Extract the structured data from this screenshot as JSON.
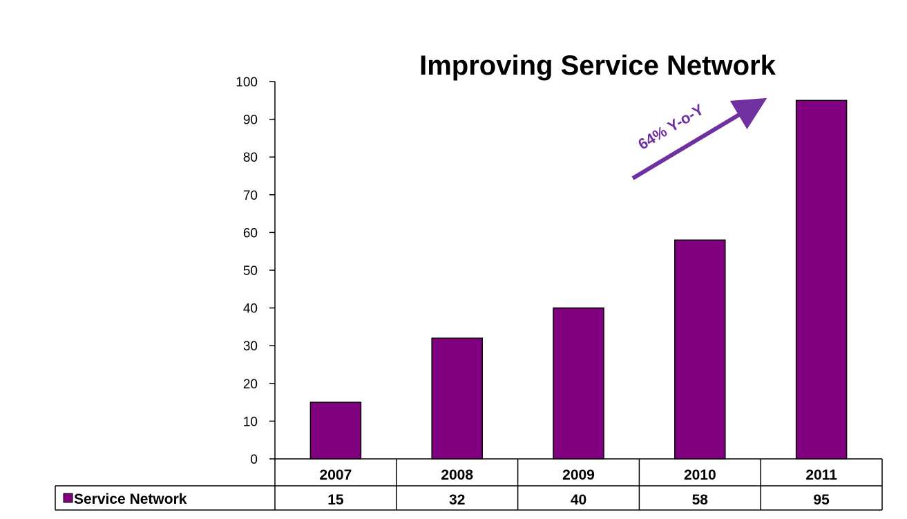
{
  "colors": {
    "bar": "#800080",
    "bar_border": "#000000",
    "arrow": "#7030A0",
    "annotation": "#7030A0",
    "background": "#ffffff"
  },
  "chart_data": {
    "type": "bar",
    "title": "Improving Service Network",
    "categories": [
      "2007",
      "2008",
      "2009",
      "2010",
      "2011"
    ],
    "series": [
      {
        "name": "Service Network",
        "values": [
          15,
          32,
          40,
          58,
          95
        ]
      }
    ],
    "yticks": [
      "0",
      "10",
      "20",
      "30",
      "40",
      "50",
      "60",
      "70",
      "80",
      "90",
      "100"
    ],
    "ylim": [
      0,
      100
    ],
    "grid": false,
    "legend": "data-table",
    "data_table": true,
    "annotation": "64% Y-o-Y",
    "xlabel": "",
    "ylabel": ""
  }
}
